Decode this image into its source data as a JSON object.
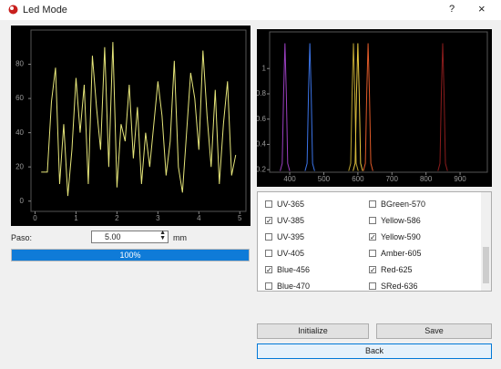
{
  "window": {
    "title": "Led Mode",
    "help": "?",
    "close": "×"
  },
  "chart_data": [
    {
      "type": "line",
      "xlim": [
        -0.1,
        5.15
      ],
      "ylim": [
        -6,
        100
      ],
      "xticks": [
        0,
        1,
        2,
        3,
        4,
        5
      ],
      "yticks": [
        0,
        20,
        40,
        60,
        80
      ],
      "series": [
        {
          "color": "#e6e67a",
          "x": [
            0.15,
            0.3,
            0.4,
            0.5,
            0.6,
            0.7,
            0.8,
            0.9,
            1.0,
            1.1,
            1.2,
            1.3,
            1.4,
            1.5,
            1.6,
            1.7,
            1.8,
            1.9,
            2.0,
            2.1,
            2.2,
            2.3,
            2.4,
            2.5,
            2.6,
            2.7,
            2.8,
            2.9,
            3.0,
            3.1,
            3.2,
            3.3,
            3.4,
            3.5,
            3.6,
            3.7,
            3.8,
            3.9,
            4.0,
            4.1,
            4.2,
            4.3,
            4.4,
            4.5,
            4.6,
            4.7,
            4.8,
            4.9
          ],
          "values": [
            17,
            17,
            58,
            78,
            10,
            45,
            3,
            30,
            72,
            40,
            68,
            10,
            85,
            55,
            30,
            90,
            20,
            93,
            8,
            45,
            35,
            68,
            25,
            55,
            10,
            40,
            20,
            45,
            70,
            50,
            15,
            35,
            82,
            20,
            5,
            40,
            75,
            60,
            30,
            88,
            50,
            20,
            65,
            10,
            45,
            70,
            15,
            27
          ]
        }
      ]
    },
    {
      "type": "line",
      "xlim": [
        341,
        980
      ],
      "ylim": [
        0.18,
        1.29
      ],
      "xticks": [
        400,
        500,
        600,
        700,
        800,
        900
      ],
      "yticks": [
        0.2,
        0.4,
        0.6,
        0.8,
        1
      ],
      "series": [
        {
          "color": "#9a3fc0",
          "x": [
            372,
            378,
            382,
            386,
            390,
            394,
            400
          ],
          "values": [
            0.19,
            0.25,
            0.8,
            1.2,
            0.8,
            0.25,
            0.19
          ]
        },
        {
          "color": "#3b74e8",
          "x": [
            445,
            451,
            455,
            459,
            463,
            467,
            473
          ],
          "values": [
            0.19,
            0.25,
            0.8,
            1.2,
            0.8,
            0.25,
            0.19
          ]
        },
        {
          "color": "#b8a030",
          "x": [
            573,
            579,
            583,
            587,
            591,
            595,
            601
          ],
          "values": [
            0.19,
            0.25,
            0.8,
            1.2,
            0.8,
            0.25,
            0.19
          ]
        },
        {
          "color": "#e8c840",
          "x": [
            586,
            592,
            596,
            600,
            604,
            608,
            614
          ],
          "values": [
            0.19,
            0.25,
            0.8,
            1.2,
            0.8,
            0.25,
            0.19
          ]
        },
        {
          "color": "#e05a28",
          "x": [
            616,
            622,
            626,
            630,
            634,
            638,
            644
          ],
          "values": [
            0.19,
            0.25,
            0.8,
            1.2,
            0.8,
            0.25,
            0.19
          ]
        },
        {
          "color": "#8a1c1c",
          "x": [
            835,
            841,
            845,
            849,
            853,
            857,
            863
          ],
          "values": [
            0.19,
            0.25,
            0.8,
            1.2,
            0.8,
            0.25,
            0.19
          ]
        }
      ]
    }
  ],
  "controls": {
    "paso_label": "Paso:",
    "paso_value": "5.00",
    "paso_unit": "mm",
    "progress": {
      "value": 100,
      "label": "100%"
    },
    "leds": [
      [
        {
          "label": "UV-365",
          "checked": false
        },
        {
          "label": "BGreen-570",
          "checked": false
        }
      ],
      [
        {
          "label": "UV-385",
          "checked": true
        },
        {
          "label": "Yellow-586",
          "checked": false
        }
      ],
      [
        {
          "label": "UV-395",
          "checked": false
        },
        {
          "label": "Yellow-590",
          "checked": true
        }
      ],
      [
        {
          "label": "UV-405",
          "checked": false
        },
        {
          "label": "Amber-605",
          "checked": false
        }
      ],
      [
        {
          "label": "Blue-456",
          "checked": true
        },
        {
          "label": "Red-625",
          "checked": true
        }
      ],
      [
        {
          "label": "Blue-470",
          "checked": false
        },
        {
          "label": "SRed-636",
          "checked": false
        }
      ]
    ],
    "buttons": {
      "initialize": "Initialize",
      "save": "Save",
      "back": "Back"
    }
  }
}
